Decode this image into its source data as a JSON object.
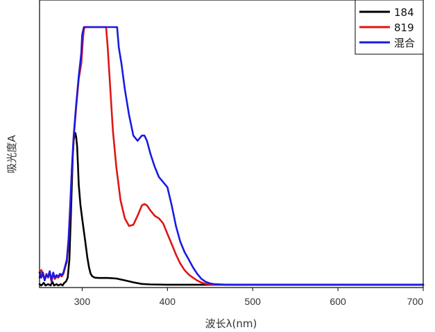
{
  "chart_data": {
    "type": "line",
    "title": "",
    "xlabel": "波长λ(nm)",
    "ylabel": "吸光度A",
    "xlim": [
      250,
      700
    ],
    "ylim": [
      0,
      1
    ],
    "x_ticks": [
      300,
      400,
      500,
      600,
      700
    ],
    "x_tick_labels": [
      "300",
      "400",
      "500",
      "600",
      "700"
    ],
    "y_ticks_labeled": false,
    "grid": false,
    "legend_position": "top-right",
    "series": [
      {
        "name": "184",
        "color": "#000000",
        "points": [
          [
            250,
            0.005
          ],
          [
            252,
            0.0
          ],
          [
            255,
            0.01
          ],
          [
            257,
            0.0
          ],
          [
            260,
            0.005
          ],
          [
            263,
            0.0
          ],
          [
            265,
            0.015
          ],
          [
            267,
            0.0
          ],
          [
            270,
            0.005
          ],
          [
            272,
            0.0
          ],
          [
            275,
            0.005
          ],
          [
            277,
            0.0
          ],
          [
            279,
            0.01
          ],
          [
            281,
            0.015
          ],
          [
            283,
            0.03
          ],
          [
            285,
            0.1
          ],
          [
            287,
            0.3
          ],
          [
            289,
            0.5
          ],
          [
            290,
            0.56
          ],
          [
            291,
            0.58
          ],
          [
            292,
            0.59
          ],
          [
            293,
            0.575
          ],
          [
            294,
            0.54
          ],
          [
            295,
            0.47
          ],
          [
            296,
            0.39
          ],
          [
            298,
            0.31
          ],
          [
            300,
            0.26
          ],
          [
            302,
            0.21
          ],
          [
            304,
            0.16
          ],
          [
            306,
            0.11
          ],
          [
            308,
            0.07
          ],
          [
            310,
            0.045
          ],
          [
            312,
            0.035
          ],
          [
            315,
            0.03
          ],
          [
            320,
            0.029
          ],
          [
            330,
            0.029
          ],
          [
            340,
            0.027
          ],
          [
            350,
            0.02
          ],
          [
            360,
            0.012
          ],
          [
            370,
            0.006
          ],
          [
            380,
            0.004
          ],
          [
            400,
            0.003
          ],
          [
            450,
            0.003
          ],
          [
            500,
            0.003
          ],
          [
            550,
            0.003
          ],
          [
            600,
            0.003
          ],
          [
            650,
            0.003
          ],
          [
            700,
            0.003
          ]
        ]
      },
      {
        "name": "819",
        "color": "#e01414",
        "points": [
          [
            250,
            0.03
          ],
          [
            252,
            0.06
          ],
          [
            254,
            0.045
          ],
          [
            256,
            0.02
          ],
          [
            258,
            0.045
          ],
          [
            260,
            0.03
          ],
          [
            262,
            0.05
          ],
          [
            264,
            0.015
          ],
          [
            266,
            0.045
          ],
          [
            268,
            0.025
          ],
          [
            270,
            0.035
          ],
          [
            272,
            0.03
          ],
          [
            274,
            0.04
          ],
          [
            276,
            0.035
          ],
          [
            278,
            0.045
          ],
          [
            280,
            0.07
          ],
          [
            282,
            0.09
          ],
          [
            284,
            0.17
          ],
          [
            286,
            0.3
          ],
          [
            288,
            0.45
          ],
          [
            290,
            0.57
          ],
          [
            293,
            0.69
          ],
          [
            296,
            0.8
          ],
          [
            299,
            0.86
          ],
          [
            301,
            0.96
          ],
          [
            302,
            0.99
          ],
          [
            303,
            1.0
          ],
          [
            310,
            1.0
          ],
          [
            320,
            1.0
          ],
          [
            328,
            1.0
          ],
          [
            330,
            0.92
          ],
          [
            333,
            0.76
          ],
          [
            336,
            0.6
          ],
          [
            340,
            0.46
          ],
          [
            345,
            0.33
          ],
          [
            350,
            0.26
          ],
          [
            355,
            0.23
          ],
          [
            360,
            0.235
          ],
          [
            365,
            0.27
          ],
          [
            370,
            0.31
          ],
          [
            373,
            0.315
          ],
          [
            376,
            0.31
          ],
          [
            380,
            0.29
          ],
          [
            385,
            0.27
          ],
          [
            390,
            0.26
          ],
          [
            395,
            0.24
          ],
          [
            400,
            0.2
          ],
          [
            405,
            0.16
          ],
          [
            410,
            0.12
          ],
          [
            415,
            0.085
          ],
          [
            420,
            0.06
          ],
          [
            425,
            0.042
          ],
          [
            430,
            0.03
          ],
          [
            435,
            0.019
          ],
          [
            440,
            0.011
          ],
          [
            445,
            0.006
          ],
          [
            450,
            0.004
          ],
          [
            470,
            0.003
          ],
          [
            500,
            0.003
          ],
          [
            550,
            0.003
          ],
          [
            600,
            0.003
          ],
          [
            650,
            0.003
          ],
          [
            700,
            0.003
          ]
        ]
      },
      {
        "name": "混合",
        "color": "#1a1ae0",
        "points": [
          [
            250,
            0.05
          ],
          [
            252,
            0.03
          ],
          [
            254,
            0.05
          ],
          [
            256,
            0.02
          ],
          [
            258,
            0.04
          ],
          [
            260,
            0.035
          ],
          [
            262,
            0.055
          ],
          [
            264,
            0.02
          ],
          [
            266,
            0.05
          ],
          [
            268,
            0.03
          ],
          [
            270,
            0.04
          ],
          [
            272,
            0.035
          ],
          [
            274,
            0.045
          ],
          [
            276,
            0.04
          ],
          [
            278,
            0.05
          ],
          [
            280,
            0.075
          ],
          [
            282,
            0.1
          ],
          [
            284,
            0.18
          ],
          [
            286,
            0.31
          ],
          [
            288,
            0.46
          ],
          [
            290,
            0.58
          ],
          [
            293,
            0.7
          ],
          [
            296,
            0.81
          ],
          [
            299,
            0.9
          ],
          [
            300,
            0.97
          ],
          [
            302,
            1.0
          ],
          [
            310,
            1.0
          ],
          [
            320,
            1.0
          ],
          [
            330,
            1.0
          ],
          [
            341,
            1.0
          ],
          [
            343,
            0.92
          ],
          [
            346,
            0.86
          ],
          [
            350,
            0.76
          ],
          [
            355,
            0.66
          ],
          [
            360,
            0.58
          ],
          [
            365,
            0.56
          ],
          [
            370,
            0.58
          ],
          [
            373,
            0.58
          ],
          [
            376,
            0.56
          ],
          [
            380,
            0.51
          ],
          [
            385,
            0.46
          ],
          [
            390,
            0.42
          ],
          [
            395,
            0.4
          ],
          [
            400,
            0.38
          ],
          [
            405,
            0.31
          ],
          [
            410,
            0.23
          ],
          [
            415,
            0.17
          ],
          [
            420,
            0.13
          ],
          [
            425,
            0.1
          ],
          [
            430,
            0.07
          ],
          [
            435,
            0.045
          ],
          [
            440,
            0.025
          ],
          [
            445,
            0.014
          ],
          [
            450,
            0.008
          ],
          [
            455,
            0.005
          ],
          [
            470,
            0.003
          ],
          [
            500,
            0.003
          ],
          [
            550,
            0.003
          ],
          [
            600,
            0.003
          ],
          [
            650,
            0.003
          ],
          [
            700,
            0.003
          ]
        ]
      }
    ]
  }
}
